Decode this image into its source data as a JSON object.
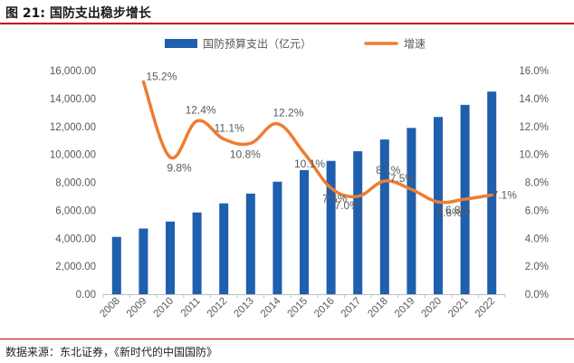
{
  "header": {
    "figure_label": "图 21:",
    "figure_title": "国防支出稳步增长"
  },
  "footer": {
    "source": "数据来源：东北证券，《新时代的中国国防》"
  },
  "chart_data": {
    "type": "bar",
    "categories": [
      "2008",
      "2009",
      "2010",
      "2011",
      "2012",
      "2013",
      "2014",
      "2015",
      "2016",
      "2017",
      "2018",
      "2019",
      "2020",
      "2021",
      "2022"
    ],
    "series": [
      {
        "name": "国防预算支出（亿元）",
        "type": "bar",
        "axis": "left",
        "color": "#1f5fad",
        "values": [
          4100,
          4700,
          5200,
          5850,
          6500,
          7200,
          8050,
          8880,
          9540,
          10230,
          11070,
          11900,
          12680,
          13550,
          14500
        ]
      },
      {
        "name": "增速",
        "type": "line",
        "axis": "right",
        "color": "#ed7d31",
        "values": [
          null,
          15.2,
          9.8,
          12.4,
          11.1,
          10.8,
          12.2,
          10.1,
          7.6,
          7.0,
          8.1,
          7.5,
          6.6,
          6.8,
          7.1
        ],
        "labels": [
          "",
          "15.2%",
          "9.8%",
          "12.4%",
          "11.1%",
          "10.8%",
          "12.2%",
          "10.1%",
          "7.6%",
          "7.0%",
          "8.1%",
          "7.5%",
          "6.6%",
          "6.8%",
          "7.1%"
        ]
      }
    ],
    "y_left": {
      "range": [
        0,
        16000
      ],
      "ticks": [
        "0.00",
        "2,000.00",
        "4,000.00",
        "6,000.00",
        "8,000.00",
        "10,000.00",
        "12,000.00",
        "14,000.00",
        "16,000.00"
      ]
    },
    "y_right": {
      "range": [
        0,
        16
      ],
      "ticks": [
        "0.0%",
        "2.0%",
        "4.0%",
        "6.0%",
        "8.0%",
        "10.0%",
        "12.0%",
        "14.0%",
        "16.0%"
      ]
    },
    "grid": false,
    "legend": "top"
  }
}
